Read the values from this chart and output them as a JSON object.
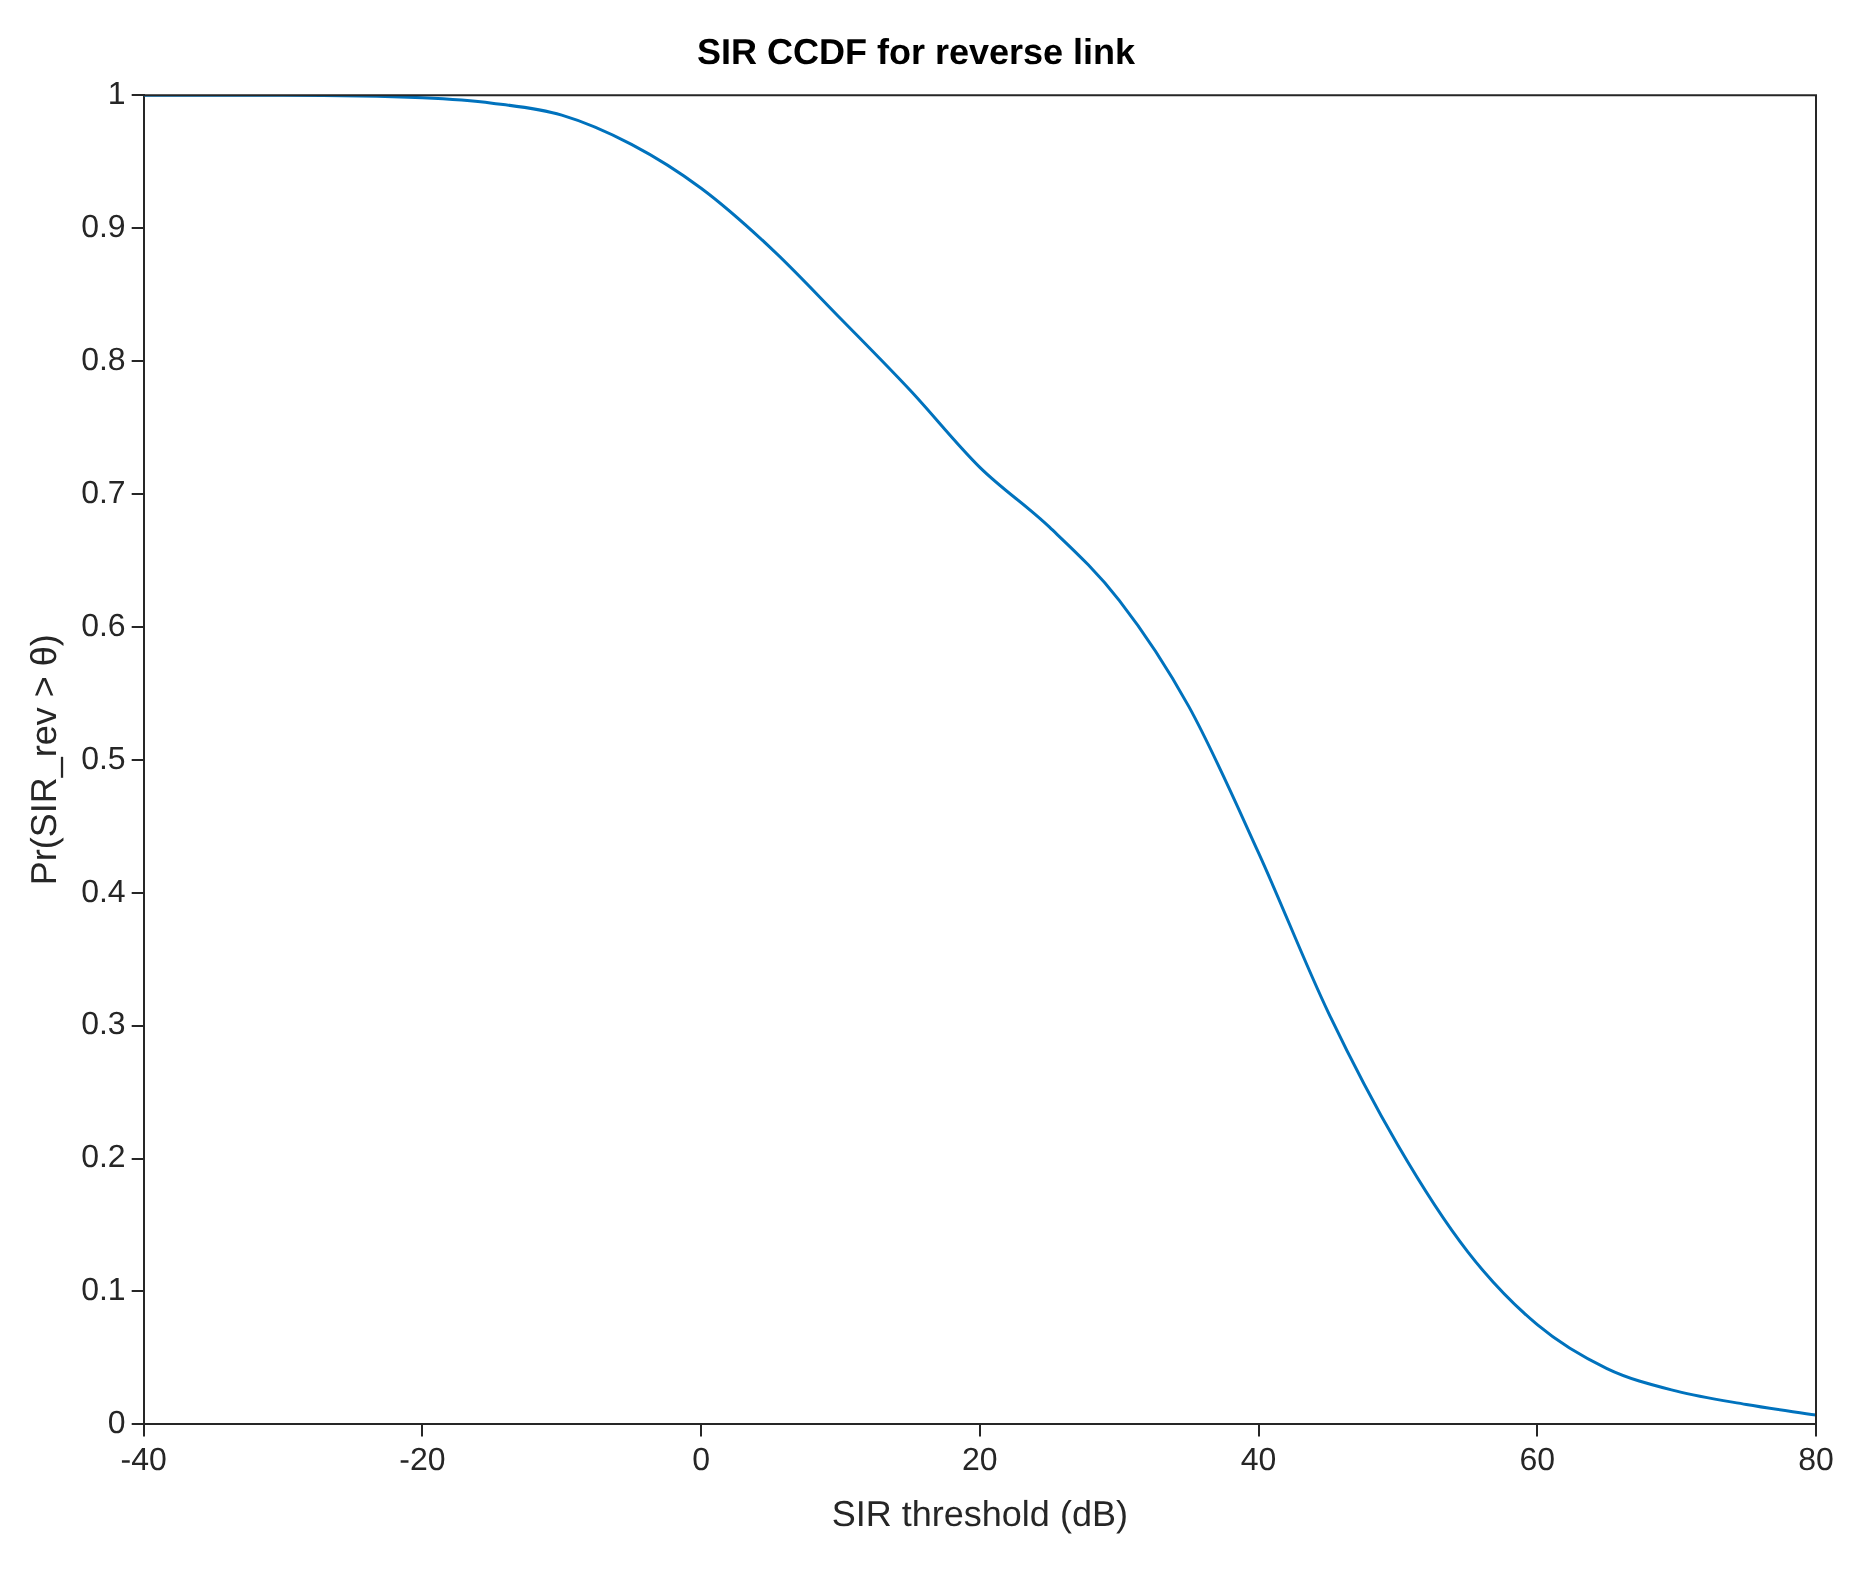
{
  "chart_data": {
    "type": "line",
    "title": "SIR CCDF for reverse link",
    "xlabel": "SIR threshold (dB)",
    "ylabel": "Pr(SIR_rev > θ)",
    "x": [
      -40,
      -30,
      -20,
      -15,
      -10,
      -5,
      0,
      5,
      10,
      15,
      20,
      25,
      30,
      35,
      40,
      45,
      50,
      55,
      60,
      65,
      70,
      75,
      80
    ],
    "series": [
      {
        "color": "#0072bd",
        "values": [
          1,
          1,
          0.998,
          0.994,
          0.985,
          0.963,
          0.93,
          0.885,
          0.832,
          0.778,
          0.72,
          0.675,
          0.62,
          0.54,
          0.43,
          0.31,
          0.21,
          0.13,
          0.075,
          0.042,
          0.025,
          0.015,
          0.007
        ]
      }
    ],
    "xlim": [
      -40,
      80
    ],
    "xticks": [
      -40,
      -20,
      0,
      20,
      40,
      60,
      80
    ],
    "ylim": [
      0,
      1
    ],
    "yticks": [
      0,
      0.1,
      0.2,
      0.3,
      0.4,
      0.5,
      0.6,
      0.7,
      0.8,
      0.9,
      1
    ],
    "grid": false,
    "legend": false,
    "marker": "none",
    "line_style": "solid"
  }
}
